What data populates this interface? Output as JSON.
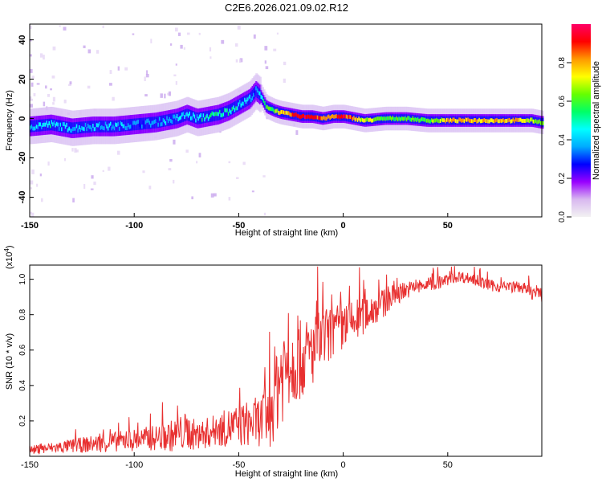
{
  "title": "C2E6.2026.021.09.02.R12",
  "chart_data": [
    {
      "type": "heatmap",
      "xlabel": "Height of straight line (km)",
      "ylabel": "Frequency (Hz)",
      "xlim": [
        -150,
        95
      ],
      "ylim": [
        -50,
        48
      ],
      "x_ticks": [
        -150,
        -100,
        -50,
        0,
        50
      ],
      "y_ticks": [
        -40,
        -20,
        0,
        20,
        40
      ],
      "colorbar": {
        "label": "Normalized spectral amplitude",
        "range": [
          0,
          1
        ],
        "ticks": [
          "0.0",
          "0.2",
          "0.4",
          "0.6",
          "0.8"
        ],
        "colormap": [
          "#f2f2f2",
          "#d8b8f0",
          "#9900ff",
          "#0000ff",
          "#00aaff",
          "#00ffff",
          "#00ff66",
          "#66ff00",
          "#ffff00",
          "#ff9900",
          "#ff0000",
          "#ff0066"
        ]
      },
      "ridge": {
        "x": [
          -150,
          -140,
          -130,
          -120,
          -110,
          -100,
          -90,
          -80,
          -75,
          -70,
          -65,
          -60,
          -55,
          -50,
          -45,
          -42,
          -40,
          -37,
          -33,
          -30,
          -25,
          -20,
          -15,
          -10,
          -5,
          0,
          5,
          10,
          20,
          30,
          40,
          50,
          60,
          70,
          80,
          90,
          95
        ],
        "y": [
          -4,
          -3,
          -5,
          -4,
          -4,
          -3,
          -2,
          0,
          2,
          0,
          1,
          2,
          4,
          7,
          10,
          14,
          12,
          6,
          4,
          3,
          2,
          1,
          1,
          0,
          1,
          1,
          0,
          -1,
          0,
          0,
          -1,
          -1,
          -1,
          -1,
          -1,
          -1,
          -2
        ],
        "amplitude": [
          0.4,
          0.45,
          0.4,
          0.4,
          0.4,
          0.35,
          0.35,
          0.4,
          0.45,
          0.45,
          0.5,
          0.5,
          0.5,
          0.45,
          0.4,
          0.35,
          0.4,
          0.55,
          0.65,
          0.75,
          0.85,
          0.95,
          0.9,
          0.85,
          0.8,
          0.9,
          0.8,
          0.7,
          0.6,
          0.6,
          0.6,
          0.75,
          0.8,
          0.75,
          0.8,
          0.7,
          0.6
        ]
      }
    },
    {
      "type": "line",
      "xlabel": "Height of straight line (km)",
      "ylabel": "SNR (10 * v/v)",
      "y_multiplier": "(x10",
      "y_multiplier_exp": "4",
      "y_multiplier_close": ")",
      "xlim": [
        -150,
        95
      ],
      "ylim": [
        0,
        1.08
      ],
      "x_ticks": [
        -150,
        -100,
        -50,
        0,
        50
      ],
      "y_ticks": [
        "0.2",
        "0.4",
        "0.6",
        "0.8",
        "1.0"
      ],
      "color": "#e83030",
      "series": [
        {
          "x": [
            -150,
            -140,
            -130,
            -120,
            -110,
            -100,
            -90,
            -80,
            -75,
            -70,
            -60,
            -50,
            -40,
            -35,
            -32,
            -30,
            -28,
            -25,
            -20,
            -15,
            -10,
            -5,
            0,
            5,
            10,
            15,
            20,
            25,
            30,
            40,
            45,
            50,
            55,
            60,
            65,
            70,
            75,
            80,
            85,
            90,
            95
          ],
          "y": [
            0.03,
            0.04,
            0.05,
            0.06,
            0.07,
            0.08,
            0.09,
            0.1,
            0.12,
            0.1,
            0.13,
            0.15,
            0.17,
            0.2,
            0.35,
            0.4,
            0.45,
            0.48,
            0.5,
            0.55,
            0.62,
            0.66,
            0.7,
            0.73,
            0.78,
            0.82,
            0.85,
            0.9,
            0.93,
            0.96,
            0.97,
            0.99,
            1.01,
            1.0,
            0.98,
            0.96,
            0.95,
            0.95,
            0.95,
            0.92,
            0.9
          ],
          "noise": [
            0.03,
            0.04,
            0.05,
            0.06,
            0.07,
            0.08,
            0.09,
            0.12,
            0.14,
            0.1,
            0.12,
            0.15,
            0.18,
            0.25,
            0.35,
            0.38,
            0.35,
            0.3,
            0.28,
            0.26,
            0.22,
            0.2,
            0.18,
            0.16,
            0.14,
            0.12,
            0.1,
            0.08,
            0.06,
            0.05,
            0.05,
            0.04,
            0.04,
            0.04,
            0.04,
            0.04,
            0.04,
            0.04,
            0.04,
            0.05,
            0.05
          ]
        }
      ]
    }
  ]
}
